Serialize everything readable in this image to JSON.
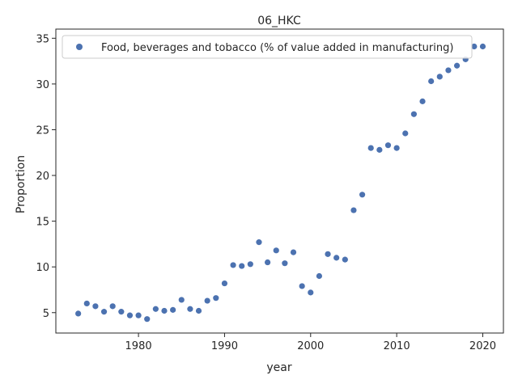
{
  "chart_data": {
    "type": "scatter",
    "title": "06_HKC",
    "xlabel": "year",
    "ylabel": "Proportion",
    "xlim": [
      1969.6,
      1932.4
    ],
    "ylim": [
      2.77,
      36.0
    ],
    "x_ticks": [
      1980,
      1990,
      2000,
      2010,
      2020
    ],
    "y_ticks": [
      5,
      10,
      15,
      20,
      25,
      30,
      35
    ],
    "grid": false,
    "legend_position": "top",
    "marker_color": "#4c72b0",
    "series": [
      {
        "name": "Food, beverages and tobacco (% of value added in manufacturing)",
        "x": [
          1973,
          1974,
          1975,
          1976,
          1977,
          1978,
          1979,
          1980,
          1981,
          1982,
          1983,
          1984,
          1985,
          1986,
          1987,
          1988,
          1989,
          1990,
          1991,
          1992,
          1993,
          1994,
          1995,
          1996,
          1997,
          1998,
          1999,
          2000,
          2001,
          2002,
          2003,
          2004,
          2005,
          2006,
          2007,
          2008,
          2009,
          2010,
          2011,
          2012,
          2013,
          2014,
          2015,
          2016,
          2017,
          2018,
          2019,
          2020
        ],
        "y": [
          4.9,
          6.0,
          5.7,
          5.1,
          5.7,
          5.1,
          4.7,
          4.7,
          4.3,
          5.4,
          5.2,
          5.3,
          6.4,
          5.4,
          5.2,
          6.3,
          6.6,
          8.2,
          10.2,
          10.1,
          10.3,
          12.7,
          10.5,
          11.8,
          10.4,
          11.6,
          7.9,
          7.2,
          9.0,
          11.4,
          11.0,
          10.8,
          16.2,
          17.9,
          23.0,
          22.8,
          23.3,
          23.0,
          24.6,
          26.7,
          28.1,
          30.3,
          30.8,
          31.5,
          32.0,
          32.7,
          34.1,
          34.1
        ]
      }
    ]
  }
}
